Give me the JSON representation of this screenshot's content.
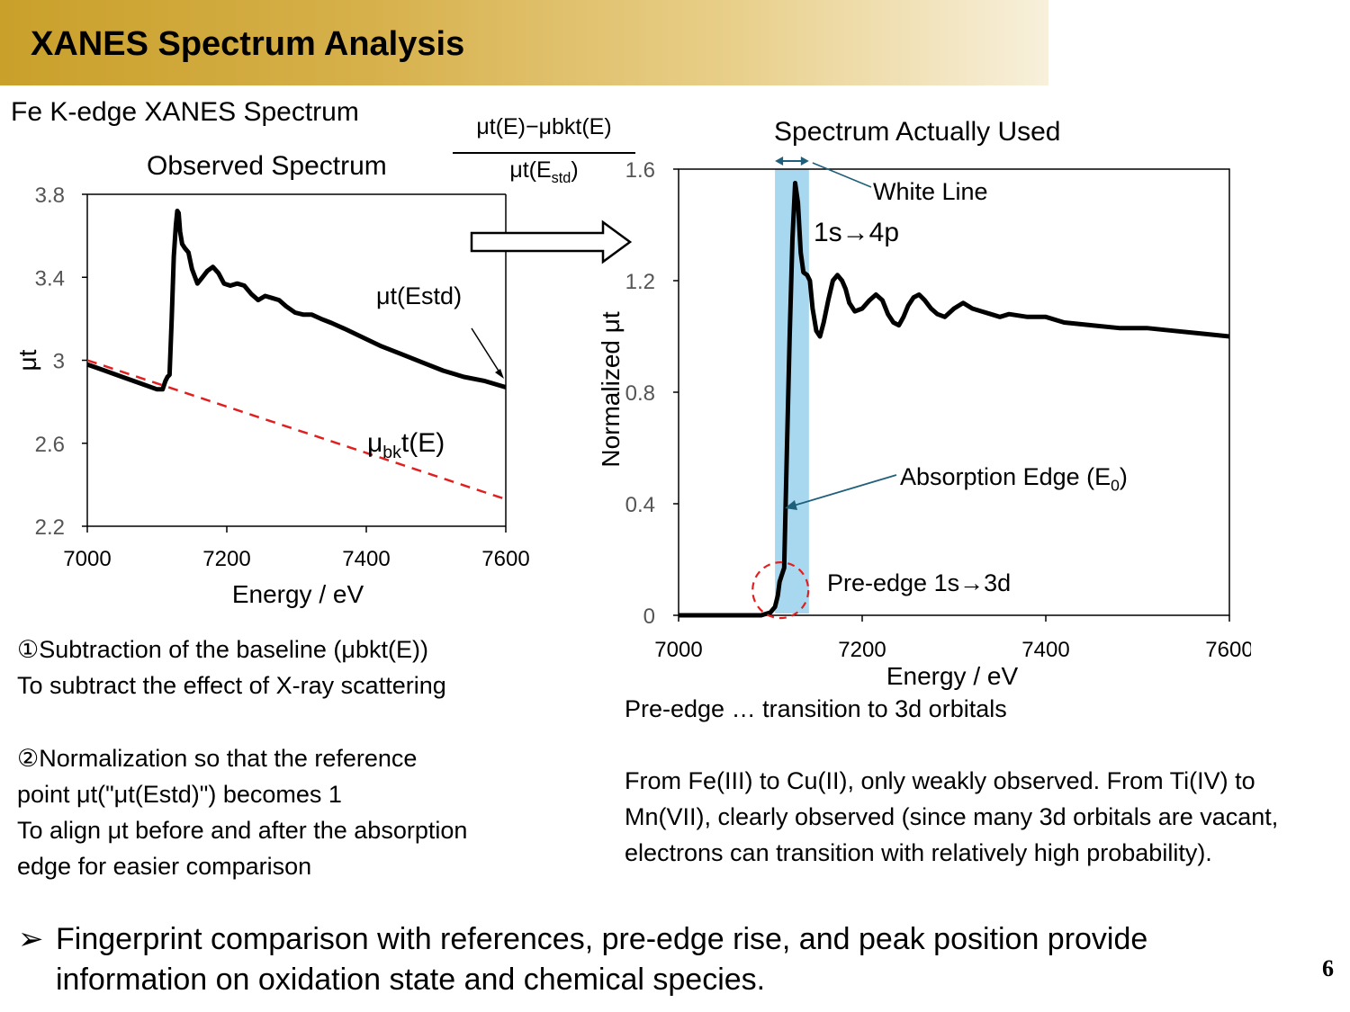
{
  "header": {
    "title": "XANES Spectrum Analysis"
  },
  "left_panel": {
    "heading": "Fe K-edge XANES Spectrum",
    "observed_label": "Observed Spectrum",
    "formula_numerator": "μt(E)−μbkt(E)",
    "formula_denominator_base": "μt(E",
    "formula_denominator_sub": "std",
    "formula_denominator_close": ")",
    "estd_label": "μt(Estd)",
    "baseline_label_base": "μ",
    "baseline_label_sub": "bk",
    "baseline_label_rest": "t(E)"
  },
  "right_panel": {
    "heading": "Spectrum Actually Used",
    "white_line_label": "White Line",
    "transition_label": "1s→4p",
    "edge_label_base": "Absorption Edge (E",
    "edge_label_sub": "0",
    "edge_label_close": ")",
    "preedge_label": "Pre-edge 1s→3d"
  },
  "notes_left": {
    "step1_line1": "①Subtraction of the baseline (μbkt(E))",
    "step1_line2": "To subtract the effect of X-ray scattering",
    "step2_line1": "②Normalization so that the reference",
    "step2_line2": "point μt(\"μt(Estd)\") becomes 1",
    "step2_line3": "To align μt before and after the absorption",
    "step2_line4": "edge for easier comparison"
  },
  "notes_right": {
    "line1": "Pre-edge … transition to 3d orbitals",
    "para": "From Fe(III) to Cu(II), only weakly observed. From Ti(IV) to Mn(VII), clearly observed (since many 3d orbitals are vacant, electrons can transition with relatively high probability)."
  },
  "bullet": {
    "mark": "➢",
    "text": "Fingerprint comparison with references, pre-edge rise, and peak position provide information on oxidation state and chemical species."
  },
  "page_number": "6",
  "colors": {
    "title_gold": "#c9a02a",
    "baseline_red": "#e02020",
    "highlight_blue": "#a8d8ef",
    "arrow_teal": "#1f5f7a"
  },
  "chart_data": [
    {
      "type": "line",
      "xlabel": "Energy / eV",
      "ylabel": "μt",
      "xlim": [
        7000,
        7600
      ],
      "ylim": [
        2.2,
        3.8
      ],
      "xticks": [
        7000,
        7200,
        7400,
        7600
      ],
      "yticks": [
        2.2,
        2.6,
        3,
        3.4,
        3.8
      ],
      "ytick_labels": [
        "2.2",
        "2.6",
        "3",
        "3.4",
        "3.8"
      ],
      "series": [
        {
          "name": "μt(Estd)",
          "style": "solid-black",
          "x": [
            7000,
            7025,
            7050,
            7075,
            7100,
            7108,
            7112,
            7115,
            7118,
            7121,
            7124,
            7127,
            7129,
            7131,
            7133,
            7136,
            7140,
            7145,
            7150,
            7158,
            7165,
            7172,
            7180,
            7188,
            7196,
            7205,
            7215,
            7225,
            7235,
            7245,
            7255,
            7265,
            7275,
            7285,
            7298,
            7310,
            7322,
            7335,
            7350,
            7370,
            7395,
            7420,
            7450,
            7480,
            7510,
            7540,
            7570,
            7600
          ],
          "y": [
            2.98,
            2.95,
            2.92,
            2.89,
            2.86,
            2.86,
            2.9,
            2.92,
            2.93,
            3.2,
            3.5,
            3.65,
            3.72,
            3.71,
            3.62,
            3.56,
            3.54,
            3.52,
            3.44,
            3.37,
            3.4,
            3.43,
            3.45,
            3.42,
            3.37,
            3.36,
            3.37,
            3.36,
            3.32,
            3.29,
            3.31,
            3.3,
            3.29,
            3.26,
            3.23,
            3.22,
            3.22,
            3.2,
            3.18,
            3.15,
            3.11,
            3.07,
            3.03,
            2.99,
            2.95,
            2.92,
            2.9,
            2.87
          ]
        },
        {
          "name": "μbkt(E)",
          "style": "dashed-red",
          "x": [
            7000,
            7600
          ],
          "y": [
            3.0,
            2.33
          ]
        }
      ]
    },
    {
      "type": "line",
      "xlabel": "Energy / eV",
      "ylabel": "Normalized μt",
      "xlim": [
        7000,
        7600
      ],
      "ylim": [
        0,
        1.6
      ],
      "xticks": [
        7000,
        7200,
        7400,
        7600
      ],
      "yticks": [
        0,
        0.4,
        0.8,
        1.2,
        1.6
      ],
      "ytick_labels": [
        "0",
        "0.4",
        "0.8",
        "1.2",
        "1.6"
      ],
      "highlight_range_x": [
        7105,
        7142
      ],
      "series": [
        {
          "name": "Normalized μt",
          "style": "solid-black",
          "x": [
            7000,
            7050,
            7090,
            7100,
            7105,
            7108,
            7110,
            7112,
            7115,
            7118,
            7121,
            7124,
            7127,
            7130,
            7133,
            7136,
            7140,
            7143,
            7146,
            7150,
            7154,
            7158,
            7163,
            7168,
            7173,
            7178,
            7182,
            7186,
            7192,
            7200,
            7208,
            7215,
            7222,
            7228,
            7234,
            7240,
            7245,
            7250,
            7256,
            7262,
            7268,
            7275,
            7282,
            7290,
            7300,
            7310,
            7320,
            7330,
            7340,
            7350,
            7360,
            7380,
            7400,
            7420,
            7450,
            7480,
            7510,
            7540,
            7570,
            7600
          ],
          "y": [
            0.0,
            0.0,
            0.0,
            0.01,
            0.03,
            0.07,
            0.12,
            0.14,
            0.17,
            0.6,
            1.0,
            1.35,
            1.55,
            1.48,
            1.3,
            1.23,
            1.22,
            1.2,
            1.1,
            1.02,
            1.0,
            1.05,
            1.13,
            1.2,
            1.22,
            1.2,
            1.17,
            1.12,
            1.09,
            1.1,
            1.13,
            1.15,
            1.13,
            1.08,
            1.05,
            1.04,
            1.07,
            1.11,
            1.14,
            1.15,
            1.13,
            1.1,
            1.08,
            1.07,
            1.1,
            1.12,
            1.1,
            1.09,
            1.08,
            1.07,
            1.08,
            1.07,
            1.07,
            1.05,
            1.04,
            1.03,
            1.03,
            1.02,
            1.01,
            1.0
          ]
        }
      ]
    }
  ]
}
